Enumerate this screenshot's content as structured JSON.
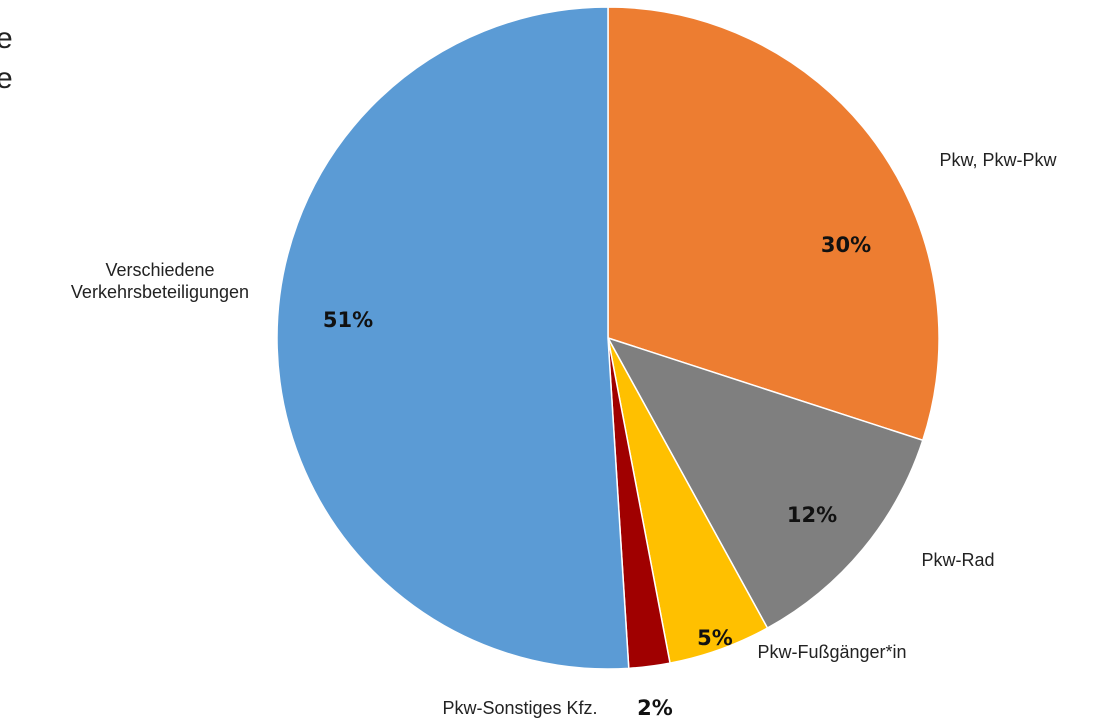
{
  "chart_data": {
    "type": "pie",
    "annotations": [
      "e",
      "e"
    ],
    "categories": [
      "Pkw, Pkw-Pkw",
      "Pkw-Rad",
      "Pkw-Fußgänger*in",
      "Pkw-Sonstiges Kfz.",
      "Verschiedene Verkehrsbeteiligungen"
    ],
    "values": [
      30,
      12,
      5,
      2,
      51
    ],
    "value_labels": [
      "30%",
      "12%",
      "5%",
      "2%",
      "51%"
    ],
    "colors": [
      "#ED7D31",
      "#7F7F7F",
      "#FFC000",
      "#A00000",
      "#5B9BD5"
    ]
  }
}
